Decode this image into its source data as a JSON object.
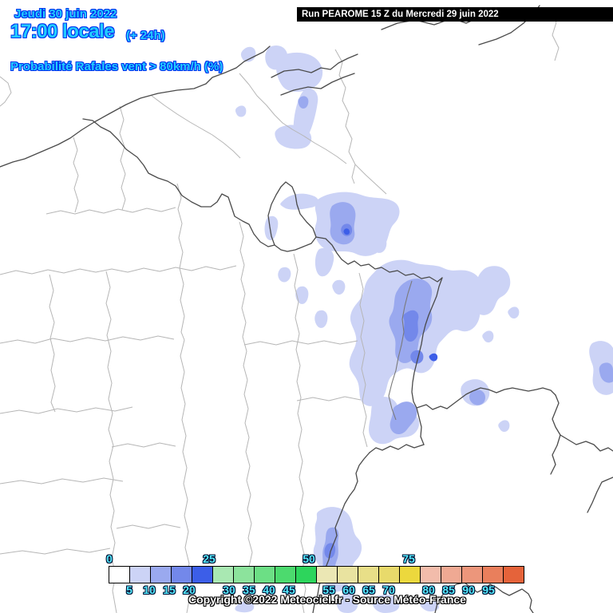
{
  "header": {
    "date": "Jeudi 30 juin 2022",
    "time": "17:00 locale",
    "offset": "(+ 24h)",
    "variable_label": "Probabilité Rafales vent > 80km/h (%)",
    "text_color": "#22ccff",
    "outline_color": "#0033ee"
  },
  "run_info": {
    "label": "Run PEAROME 15 Z du Mercredi 29 juin 2022",
    "bg_color": "#000000",
    "text_color": "#ffffff"
  },
  "legend": {
    "label_color": "#55eaff",
    "label_outline_color": "#001133",
    "top_labels": [
      0,
      25,
      50,
      75
    ],
    "bottom_labels": [
      5,
      10,
      15,
      20,
      30,
      35,
      40,
      45,
      55,
      60,
      65,
      70,
      80,
      85,
      90,
      95
    ],
    "cells": [
      {
        "range": "0-5",
        "color": "#ffffff"
      },
      {
        "range": "5-10",
        "color": "#ccd3f6"
      },
      {
        "range": "10-15",
        "color": "#9aa9ef"
      },
      {
        "range": "15-20",
        "color": "#7388ea"
      },
      {
        "range": "20-25",
        "color": "#3c5ee8"
      },
      {
        "range": "25-30",
        "color": "#a9e8b2"
      },
      {
        "range": "30-35",
        "color": "#8ce39c"
      },
      {
        "range": "35-40",
        "color": "#6cdf85"
      },
      {
        "range": "40-45",
        "color": "#4cda6e"
      },
      {
        "range": "45-50",
        "color": "#2dd55c"
      },
      {
        "range": "50-55",
        "color": "#ebe7b4"
      },
      {
        "range": "55-60",
        "color": "#e9e3a0"
      },
      {
        "range": "60-65",
        "color": "#e8df88"
      },
      {
        "range": "65-70",
        "color": "#e8da6b"
      },
      {
        "range": "70-75",
        "color": "#ecd83d"
      },
      {
        "range": "75-80",
        "color": "#f2bcab"
      },
      {
        "range": "80-85",
        "color": "#efa993"
      },
      {
        "range": "85-90",
        "color": "#ec967b"
      },
      {
        "range": "90-95",
        "color": "#e97f5c"
      },
      {
        "range": "95-100",
        "color": "#e5633a"
      }
    ]
  },
  "map": {
    "blob_palette": [
      "#ccd3f6",
      "#9aa9ef",
      "#7388ea",
      "#3c5ee8"
    ],
    "border_colors": {
      "country": "#4a4a4a",
      "department": "#b6b6b6",
      "relief": "#7a7a7a"
    }
  },
  "copyright": "Copyright ©2022 Meteociel.fr - Source Météo-France"
}
